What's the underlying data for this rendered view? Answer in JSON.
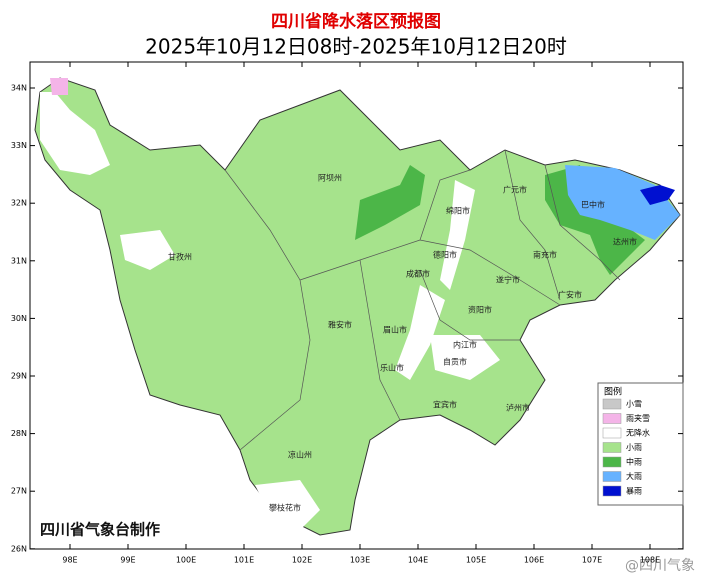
{
  "header": {
    "title": "四川省降水落区预报图",
    "subtitle": "2025年10月12日08时-2025年10月12日20时"
  },
  "axes": {
    "latitude": [
      "34N",
      "33N",
      "32N",
      "31N",
      "30N",
      "29N",
      "28N",
      "27N",
      "26N"
    ],
    "longitude": [
      "98E",
      "99E",
      "100E",
      "101E",
      "102E",
      "103E",
      "104E",
      "105E",
      "106E",
      "107E",
      "108E"
    ]
  },
  "cities": [
    "阿坝州",
    "巴中市",
    "广元市",
    "绵阳市",
    "甘孜州",
    "德阳市",
    "南充市",
    "达州市",
    "成都市",
    "遂宁市",
    "广安市",
    "雅安市",
    "眉山市",
    "资阳市",
    "内江市",
    "乐山市",
    "自贡市",
    "宜宾市",
    "泸州市",
    "凉山州",
    "攀枝花市"
  ],
  "legend": {
    "title": "图例",
    "items": [
      {
        "label": "小雪",
        "color": "#c8c8c8"
      },
      {
        "label": "雨夹雪",
        "color": "#f4b4e8"
      },
      {
        "label": "无降水",
        "color": "#ffffff"
      },
      {
        "label": "小雨",
        "color": "#a6e38c"
      },
      {
        "label": "中雨",
        "color": "#4cb648"
      },
      {
        "label": "大雨",
        "color": "#66b2ff"
      },
      {
        "label": "暴雨",
        "color": "#0010d0"
      }
    ]
  },
  "footer": "四川省气象台制作",
  "watermark": "@四川气象"
}
